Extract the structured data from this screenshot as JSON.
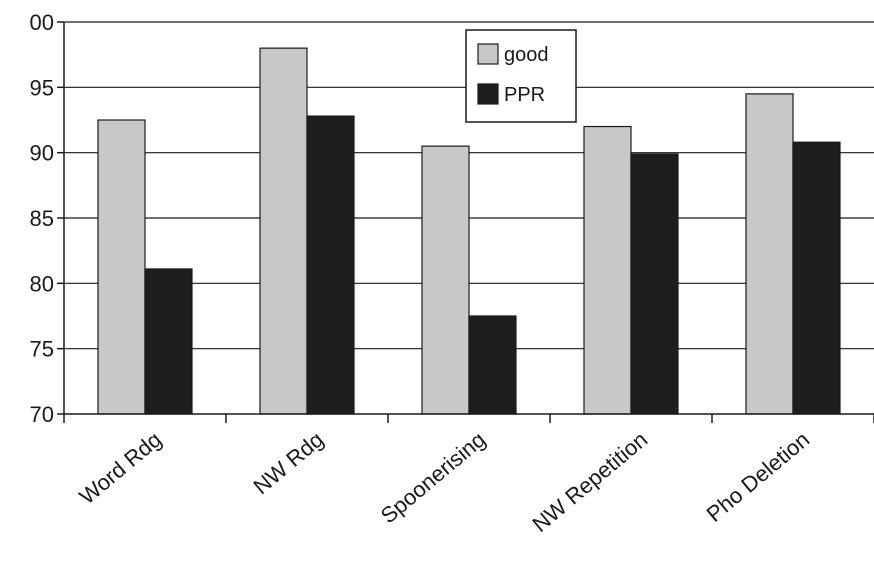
{
  "chart_data": {
    "type": "bar",
    "categories": [
      "Word Rdg",
      "NW Rdg",
      "Spoonerising",
      "NW Repetition",
      "Pho Deletion"
    ],
    "series": [
      {
        "name": "good",
        "values": [
          92.5,
          98.0,
          90.5,
          92.0,
          94.5
        ],
        "color": "#c8c8c8"
      },
      {
        "name": "PPR",
        "values": [
          81.1,
          92.8,
          77.5,
          89.9,
          90.8
        ],
        "color": "#1e1e1e"
      }
    ],
    "yticks": [
      "70",
      "75",
      "80",
      "85",
      "90",
      "95",
      "00"
    ],
    "ylim": [
      70,
      100
    ],
    "grid": true,
    "legend_position": "top-center",
    "title": "",
    "xlabel": "",
    "ylabel": ""
  }
}
